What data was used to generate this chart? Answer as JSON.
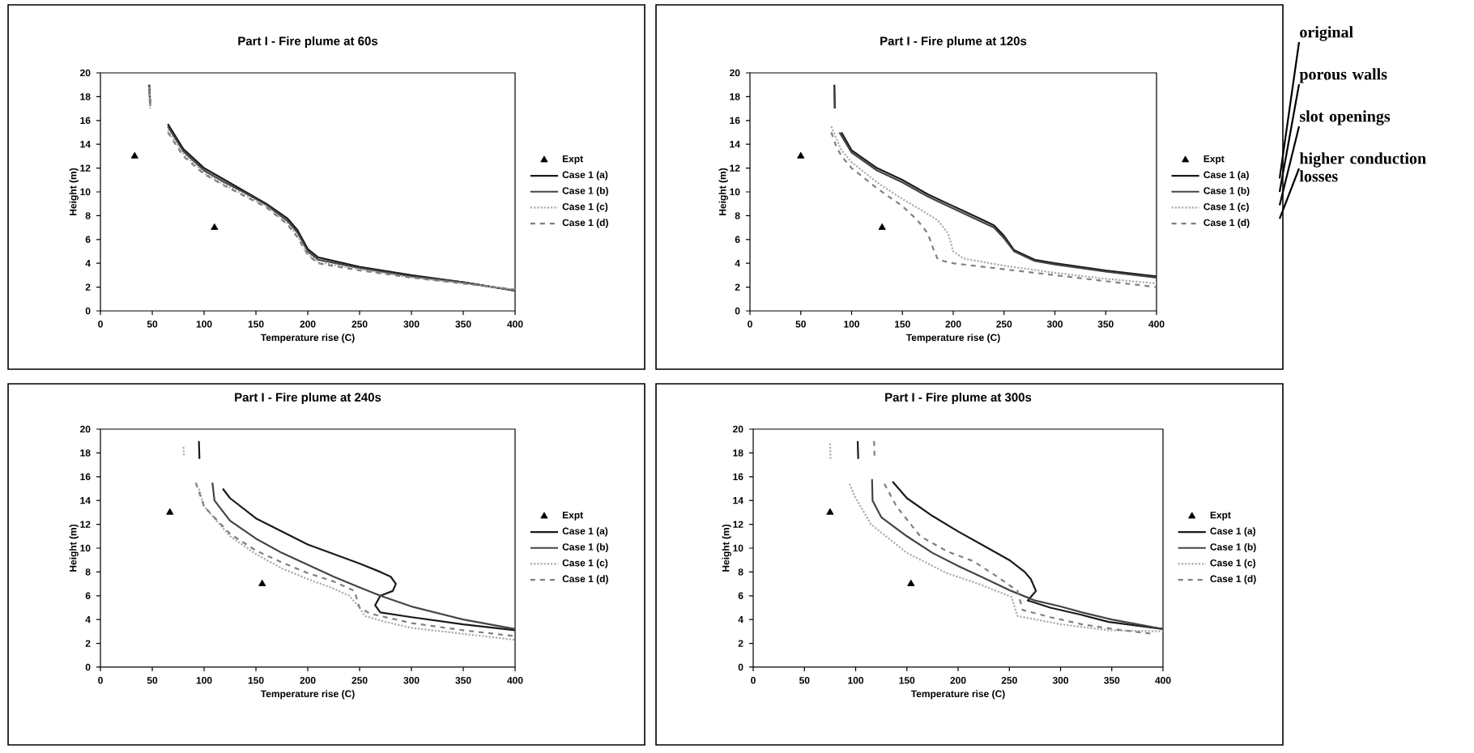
{
  "chart_data": [
    {
      "type": "line",
      "title": "Part I - Fire plume at 60s",
      "xlabel": "Temperature rise (C)",
      "ylabel": "Height (m)",
      "xlim": [
        0,
        400
      ],
      "ylim": [
        0,
        20
      ],
      "xticks": [
        0,
        50,
        100,
        150,
        200,
        250,
        300,
        350,
        400
      ],
      "yticks": [
        0,
        2,
        4,
        6,
        8,
        10,
        12,
        14,
        16,
        18,
        20
      ],
      "legend": "right",
      "x": [
        47,
        48,
        55,
        65,
        80,
        100,
        120,
        140,
        160,
        180,
        190,
        200,
        210,
        250,
        300,
        350,
        400
      ],
      "series": [
        {
          "name": "Expt",
          "type": "scatter",
          "marker": "triangle",
          "color": "#000000",
          "x": [
            33,
            110
          ],
          "values": [
            13,
            7
          ]
        },
        {
          "name": "Case 1 (a)",
          "type": "line",
          "line_style": "solid",
          "color": "#1a1a1a",
          "values": [
            19,
            17.5,
            null,
            15.7,
            13.6,
            12,
            11,
            10,
            9,
            7.8,
            6.8,
            5.2,
            4.5,
            3.7,
            3.0,
            2.4,
            1.7
          ]
        },
        {
          "name": "Case 1 (b)",
          "type": "line",
          "line_style": "solid",
          "color": "#444444",
          "values": [
            19,
            17.2,
            null,
            15.5,
            13.4,
            11.8,
            10.8,
            9.9,
            8.9,
            7.6,
            6.6,
            5.0,
            4.3,
            3.6,
            2.9,
            2.4,
            1.7
          ]
        },
        {
          "name": "Case 1 (c)",
          "type": "line",
          "line_style": "dotted",
          "color": "#aaaaaa",
          "values": [
            18.8,
            17,
            null,
            15.2,
            13.2,
            11.6,
            10.6,
            9.7,
            8.8,
            7.4,
            6.3,
            4.8,
            4.1,
            3.5,
            2.8,
            2.3,
            1.8
          ]
        },
        {
          "name": "Case 1 (d)",
          "type": "line",
          "line_style": "dashed",
          "color": "#808080",
          "values": [
            18.6,
            17,
            null,
            15,
            13,
            11.5,
            10.5,
            9.6,
            8.7,
            7.3,
            6.2,
            4.7,
            4.0,
            3.4,
            2.8,
            2.3,
            1.8
          ]
        }
      ]
    },
    {
      "type": "line",
      "title": "Part I - Fire plume at 120s",
      "xlabel": "Temperature rise (C)",
      "ylabel": "Height (m)",
      "xlim": [
        0,
        400
      ],
      "ylim": [
        0,
        20
      ],
      "xticks": [
        0,
        50,
        100,
        150,
        200,
        250,
        300,
        350,
        400
      ],
      "yticks": [
        0,
        2,
        4,
        6,
        8,
        10,
        12,
        14,
        16,
        18,
        20
      ],
      "legend": "right",
      "annotations": [
        "original",
        "porous walls",
        "slot openings",
        "higher conduction losses"
      ],
      "series": [
        {
          "name": "Expt",
          "type": "scatter",
          "marker": "triangle",
          "color": "#000000",
          "x": [
            50,
            130
          ],
          "values": [
            13,
            7
          ]
        },
        {
          "name": "Case 1 (a)",
          "type": "line",
          "line_style": "solid",
          "color": "#1a1a1a",
          "x": [
            83,
            83.5,
            85,
            90,
            100,
            125,
            150,
            175,
            200,
            225,
            240,
            250,
            260,
            280,
            300,
            350,
            400
          ],
          "values": [
            19,
            17,
            null,
            15,
            13.5,
            12,
            11,
            9.8,
            8.8,
            7.8,
            7.2,
            6.3,
            5.1,
            4.3,
            4.0,
            3.4,
            2.9
          ]
        },
        {
          "name": "Case 1 (b)",
          "type": "line",
          "line_style": "solid",
          "color": "#444444",
          "x": [
            83,
            83.5,
            85,
            88,
            100,
            125,
            150,
            175,
            200,
            225,
            240,
            250,
            260,
            280,
            300,
            350,
            400
          ],
          "values": [
            18.8,
            17,
            null,
            15,
            13.3,
            11.8,
            10.8,
            9.6,
            8.6,
            7.6,
            7.0,
            6.1,
            5.0,
            4.2,
            3.9,
            3.3,
            2.8
          ]
        },
        {
          "name": "Case 1 (c)",
          "type": "line",
          "line_style": "dotted",
          "color": "#aaaaaa",
          "x": [
            80,
            85,
            90,
            100,
            125,
            150,
            170,
            185,
            195,
            200,
            210,
            250,
            300,
            350,
            400
          ],
          "values": [
            15.5,
            14.5,
            13.5,
            12.5,
            10.8,
            9.4,
            8.4,
            7.6,
            6.5,
            5.0,
            4.4,
            3.8,
            3.2,
            2.7,
            2.3
          ]
        },
        {
          "name": "Case 1 (d)",
          "type": "line",
          "line_style": "dashed",
          "color": "#808080",
          "x": [
            80,
            85,
            90,
            100,
            125,
            150,
            165,
            175,
            180,
            185,
            200,
            250,
            300,
            350,
            400
          ],
          "values": [
            15,
            13.8,
            13,
            12,
            10.3,
            8.8,
            7.6,
            6.5,
            5.3,
            4.3,
            4.0,
            3.5,
            3.0,
            2.5,
            2.0
          ]
        }
      ]
    },
    {
      "type": "line",
      "title": "Part I - Fire plume at 240s",
      "xlabel": "Temperature rise (C)",
      "ylabel": "Height (m)",
      "xlim": [
        0,
        400
      ],
      "ylim": [
        0,
        20
      ],
      "xticks": [
        0,
        50,
        100,
        150,
        200,
        250,
        300,
        350,
        400
      ],
      "yticks": [
        0,
        2,
        4,
        6,
        8,
        10,
        12,
        14,
        16,
        18,
        20
      ],
      "legend": "right",
      "series": [
        {
          "name": "Expt",
          "type": "scatter",
          "marker": "triangle",
          "color": "#000000",
          "x": [
            67,
            156
          ],
          "values": [
            13,
            7
          ]
        },
        {
          "name": "Case 1 (a)",
          "type": "line",
          "line_style": "solid",
          "color": "#1a1a1a",
          "x": [
            95,
            95.5,
            110,
            118,
            125,
            150,
            175,
            200,
            225,
            250,
            270,
            280,
            285,
            282,
            270,
            265,
            270,
            300,
            350,
            400
          ],
          "values": [
            19,
            17.5,
            null,
            15,
            14.2,
            12.5,
            11.4,
            10.3,
            9.5,
            8.7,
            8.0,
            7.6,
            7.0,
            6.4,
            6.0,
            5.2,
            4.6,
            4.2,
            3.6,
            3.1
          ]
        },
        {
          "name": "Case 1 (b)",
          "type": "line",
          "line_style": "solid",
          "color": "#444444",
          "x": [
            108,
            110,
            125,
            150,
            175,
            200,
            225,
            250,
            270,
            300,
            350,
            400
          ],
          "values": [
            15.5,
            14,
            12.3,
            10.8,
            9.6,
            8.6,
            7.6,
            6.7,
            6.0,
            5.1,
            4.0,
            3.2
          ]
        },
        {
          "name": "Case 1 (c)",
          "type": "line",
          "line_style": "dotted",
          "color": "#aaaaaa",
          "x": [
            80,
            80.5,
            85,
            95,
            100,
            125,
            150,
            175,
            200,
            225,
            240,
            250,
            255,
            275,
            300,
            350,
            400
          ],
          "values": [
            18.5,
            17.8,
            null,
            15,
            13.5,
            11,
            9.5,
            8.3,
            7.4,
            6.6,
            6.0,
            5.0,
            4.3,
            3.8,
            3.3,
            2.8,
            2.3
          ]
        },
        {
          "name": "Case 1 (d)",
          "type": "line",
          "line_style": "dashed",
          "color": "#808080",
          "x": [
            92,
            100,
            125,
            150,
            175,
            200,
            225,
            245,
            250,
            260,
            300,
            350,
            400
          ],
          "values": [
            15.5,
            13.5,
            11.2,
            9.8,
            8.8,
            7.9,
            7.2,
            6.4,
            5.0,
            4.5,
            3.7,
            3.1,
            2.6
          ]
        }
      ]
    },
    {
      "type": "line",
      "title": "Part I - Fire plume at 300s",
      "xlabel": "Temperature rise (C)",
      "ylabel": "Height (m)",
      "xlim": [
        0,
        400
      ],
      "ylim": [
        0,
        20
      ],
      "xticks": [
        0,
        50,
        100,
        150,
        200,
        250,
        300,
        350,
        400
      ],
      "yticks": [
        0,
        2,
        4,
        6,
        8,
        10,
        12,
        14,
        16,
        18,
        20
      ],
      "legend": "right",
      "series": [
        {
          "name": "Expt",
          "type": "scatter",
          "marker": "triangle",
          "color": "#000000",
          "x": [
            75,
            154
          ],
          "values": [
            13,
            7
          ]
        },
        {
          "name": "Case 1 (a)",
          "type": "line",
          "line_style": "solid",
          "color": "#1a1a1a",
          "x": [
            102,
            102.5,
            110,
            136,
            150,
            175,
            200,
            225,
            250,
            265,
            271,
            276,
            268,
            290,
            320,
            347,
            400
          ],
          "values": [
            19,
            17.5,
            null,
            15.6,
            14.2,
            12.7,
            11.4,
            10.2,
            9.0,
            8.0,
            7.4,
            6.4,
            5.6,
            5.0,
            4.4,
            3.8,
            3.2
          ]
        },
        {
          "name": "Case 1 (b)",
          "type": "line",
          "line_style": "solid",
          "color": "#444444",
          "x": [
            116,
            116.5,
            125,
            150,
            175,
            200,
            225,
            252,
            275,
            300,
            321,
            350,
            400
          ],
          "values": [
            15.8,
            14,
            12.6,
            11,
            9.6,
            8.5,
            7.5,
            6.4,
            5.6,
            5.1,
            4.6,
            4.0,
            3.2
          ]
        },
        {
          "name": "Case 1 (c)",
          "type": "line",
          "line_style": "dotted",
          "color": "#aaaaaa",
          "x": [
            75,
            75.5,
            80,
            94,
            100,
            115,
            150,
            189,
            220,
            252,
            258,
            300,
            347,
            400
          ],
          "values": [
            18.8,
            17.5,
            null,
            15.4,
            14.2,
            12,
            9.6,
            7.9,
            7.0,
            5.9,
            4.3,
            3.6,
            3.1,
            3.0
          ]
        },
        {
          "name": "Case 1 (d)",
          "type": "line",
          "line_style": "dashed",
          "color": "#808080",
          "x": [
            118,
            118.5,
            122,
            128,
            140,
            163,
            190,
            215,
            240,
            258,
            263,
            290,
            321,
            360,
            390
          ],
          "values": [
            19,
            17.5,
            null,
            15.4,
            13.5,
            11,
            9.7,
            8.9,
            7.5,
            6.4,
            4.8,
            4.2,
            3.6,
            3.1,
            2.8
          ]
        }
      ]
    }
  ]
}
